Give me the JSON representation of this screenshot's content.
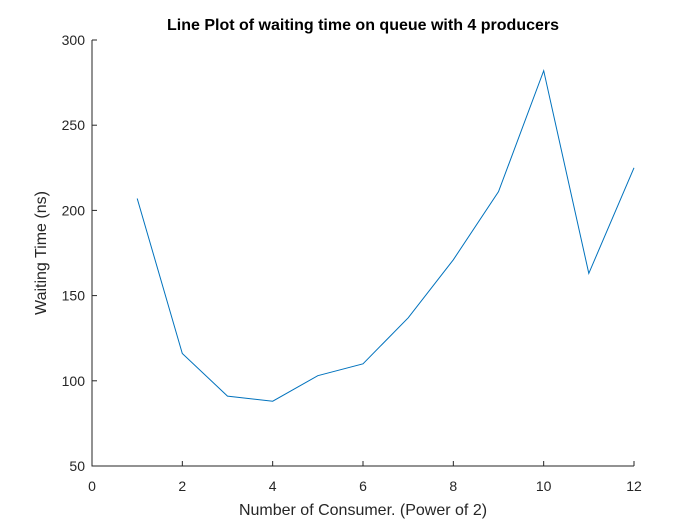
{
  "chart_data": {
    "type": "line",
    "title": "Line Plot of waiting time on queue with 4 producers",
    "xlabel": "Number of Consumer. (Power of 2)",
    "ylabel": "Waiting Time (ns)",
    "xlim": [
      0,
      12
    ],
    "ylim": [
      50,
      300
    ],
    "xticks": [
      0,
      2,
      4,
      6,
      8,
      10,
      12
    ],
    "yticks": [
      50,
      100,
      150,
      200,
      250,
      300
    ],
    "grid": false,
    "series": [
      {
        "x": [
          1,
          2,
          3,
          4,
          5,
          6,
          7,
          8,
          9,
          10,
          11,
          12
        ],
        "values": [
          207,
          116,
          91,
          88,
          103,
          110,
          137,
          171,
          211,
          282,
          163,
          225
        ],
        "color": "#0072bd"
      }
    ]
  }
}
